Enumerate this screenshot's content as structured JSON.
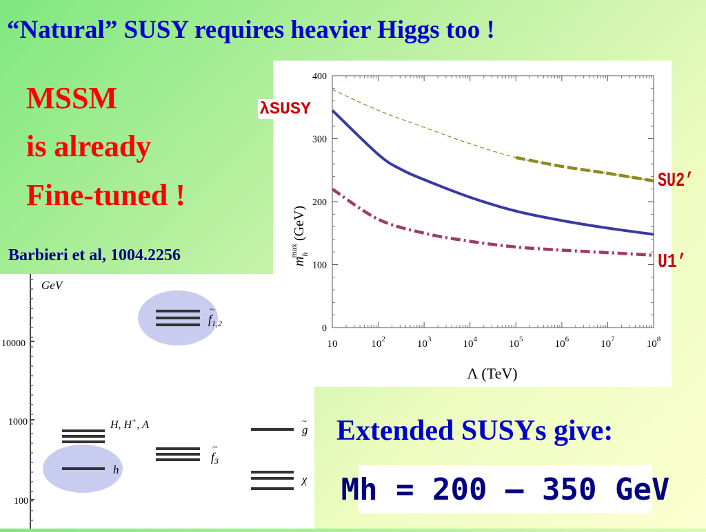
{
  "slide": {
    "title": "“Natural” SUSY requires heavier Higgs too !",
    "mssm_lines": [
      "MSSM",
      "is already",
      "Fine-tuned !"
    ],
    "citation": "Barbieri et al, 1004.2256",
    "extended": "Extended SUSYs  give:",
    "mh_formula": "Mh = 200 – 350 GeV",
    "side_labels": {
      "lambda_susy": "λSUSY",
      "su2": "SU2’",
      "u1": "U1’"
    }
  },
  "chart_data": [
    {
      "type": "line",
      "xlabel": "Λ (TeV)",
      "ylabel": "m_h^max (GeV)",
      "x_scale": "log10",
      "xlim": [
        10,
        100000000
      ],
      "ylim": [
        0,
        400
      ],
      "x_ticks": [
        10,
        100,
        1000,
        10000,
        100000,
        1000000,
        10000000,
        100000000
      ],
      "x_tick_labels": [
        "10",
        "10",
        "10",
        "10",
        "10",
        "10",
        "10",
        "10"
      ],
      "x_tick_exponents": [
        "",
        "2",
        "3",
        "4",
        "5",
        "6",
        "7",
        "8"
      ],
      "y_ticks": [
        0,
        100,
        200,
        300,
        400
      ],
      "y_tick_labels": [
        "0",
        "100",
        "200",
        "300",
        "400"
      ],
      "grid": false,
      "series": [
        {
          "name": "λSUSY",
          "color": "#3a3aa0",
          "style": "solid",
          "x": [
            10,
            100,
            300,
            1000,
            10000,
            100000,
            1000000,
            10000000,
            100000000
          ],
          "y": [
            345,
            275,
            252,
            235,
            207,
            185,
            170,
            158,
            148
          ]
        },
        {
          "name": "SU2’",
          "color": "#8a8a20",
          "style": "dashed",
          "x": [
            10,
            100,
            1000,
            10000,
            100000,
            1000000,
            10000000,
            100000000
          ],
          "y": [
            378,
            345,
            318,
            292,
            270,
            256,
            245,
            233
          ]
        },
        {
          "name": "U1’",
          "color": "#a03a6a",
          "style": "dashdot",
          "x": [
            10,
            100,
            1000,
            10000,
            100000,
            1000000,
            10000000,
            100000000
          ],
          "y": [
            220,
            172,
            150,
            137,
            128,
            123,
            119,
            115
          ]
        }
      ]
    },
    {
      "type": "diagram",
      "y_unit": "GeV",
      "y_scale": "log10",
      "y_ticks": [
        100,
        1000,
        10000
      ],
      "y_tick_labels": [
        "100",
        "1000",
        "10000"
      ],
      "levels": [
        {
          "label_main": "f",
          "label_sub": "1,2",
          "lines": 3,
          "highlighted": true
        },
        {
          "label_main": "H, H",
          "label_sup": "+",
          "label_tail": ", A",
          "lines": 3,
          "highlighted": false
        },
        {
          "label_main": "f",
          "label_sub": "3",
          "lines": 3,
          "highlighted": false
        },
        {
          "label_main": "g",
          "lines": 1,
          "highlighted": false
        },
        {
          "label_main": "χ",
          "lines": 3,
          "highlighted": false
        },
        {
          "label_main": "h",
          "lines": 1,
          "highlighted": true
        }
      ]
    }
  ]
}
